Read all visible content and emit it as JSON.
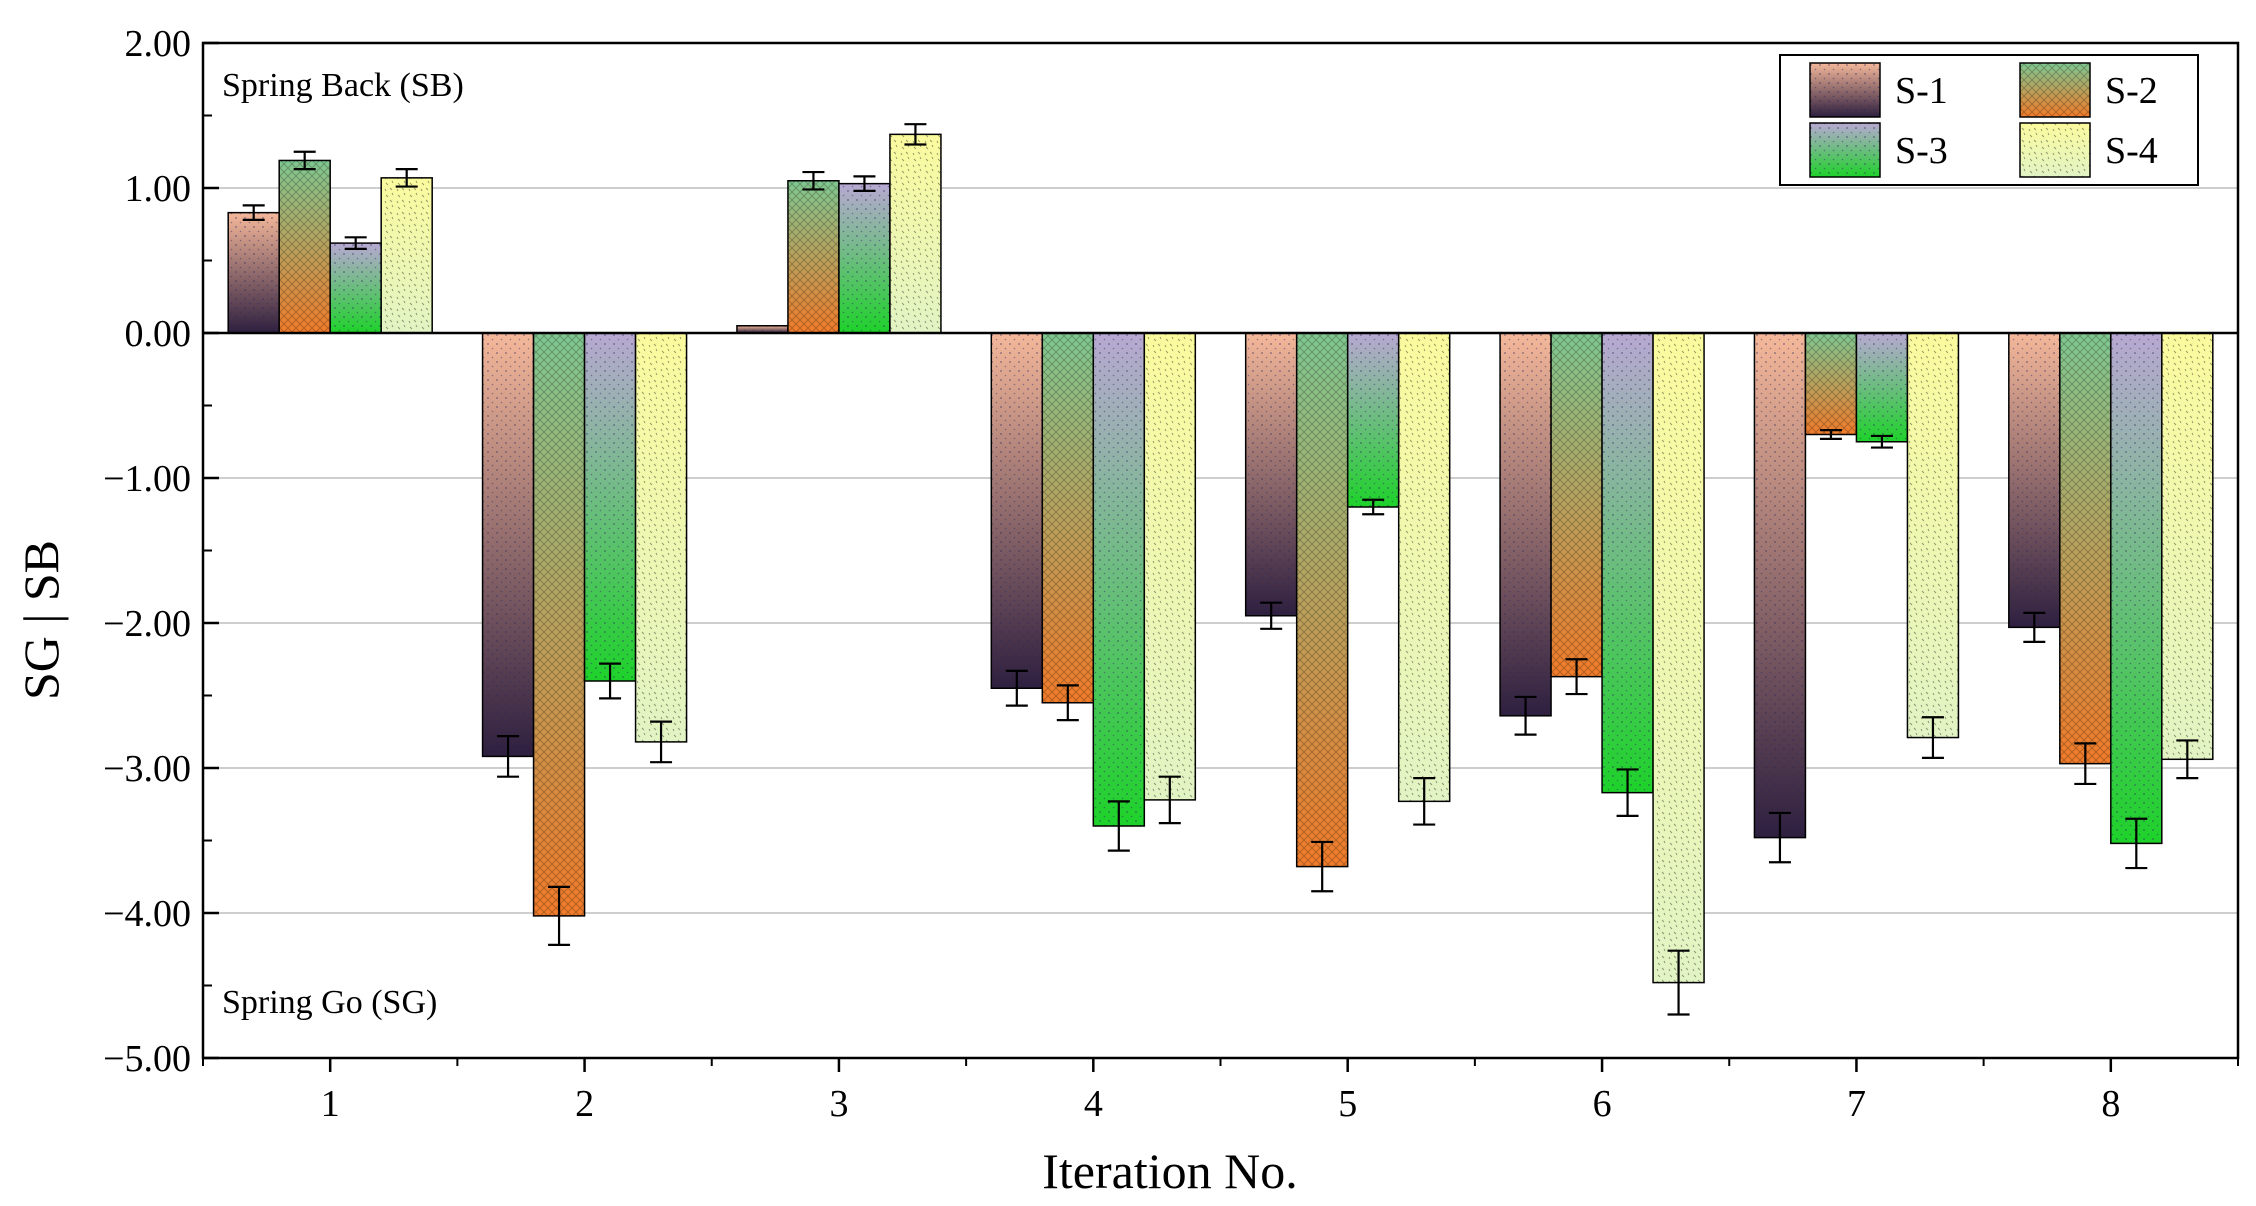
{
  "chart_data": {
    "type": "bar",
    "xlabel": "Iteration No.",
    "ylabel": "SG | SB",
    "ylim": [
      -5,
      2
    ],
    "yticks": [
      2,
      1,
      0,
      -1,
      -2,
      -3,
      -4,
      -5
    ],
    "ytick_labels": [
      "2.00",
      "1.00",
      "0.00",
      "−1.00",
      "−2.00",
      "−3.00",
      "−4.00",
      "−5.00"
    ],
    "categories": [
      "1",
      "2",
      "3",
      "4",
      "5",
      "6",
      "7",
      "8"
    ],
    "annotations": {
      "top": "Spring Back (SB)",
      "bottom": "Spring Go (SG)"
    },
    "grid": true,
    "legend_position": "top-right",
    "series": [
      {
        "name": "S-1",
        "values": [
          0.83,
          -2.92,
          0.05,
          -2.45,
          -1.95,
          -2.64,
          -3.48,
          -2.03
        ],
        "errors": [
          0.05,
          0.14,
          0.0,
          0.12,
          0.09,
          0.13,
          0.17,
          0.1
        ],
        "colors": [
          "#f5b89a",
          "#2e1f3f"
        ]
      },
      {
        "name": "S-2",
        "values": [
          1.19,
          -4.02,
          1.05,
          -2.55,
          -3.68,
          -2.37,
          -0.7,
          -2.97
        ],
        "errors": [
          0.06,
          0.2,
          0.06,
          0.12,
          0.17,
          0.12,
          0.03,
          0.14
        ],
        "colors": [
          "#7fc790",
          "#f07b2a"
        ]
      },
      {
        "name": "S-3",
        "values": [
          0.62,
          -2.4,
          1.03,
          -3.4,
          -1.2,
          -3.17,
          -0.75,
          -3.52
        ],
        "errors": [
          0.04,
          0.12,
          0.05,
          0.17,
          0.05,
          0.16,
          0.04,
          0.17
        ],
        "colors": [
          "#b8a8d2",
          "#1ed22a"
        ]
      },
      {
        "name": "S-4",
        "values": [
          1.07,
          -2.82,
          1.37,
          -3.22,
          -3.23,
          -4.48,
          -2.79,
          -2.94
        ],
        "errors": [
          0.06,
          0.14,
          0.07,
          0.16,
          0.16,
          0.22,
          0.14,
          0.13
        ],
        "colors": [
          "#fbfb9e",
          "#e2f4c4"
        ]
      }
    ]
  }
}
